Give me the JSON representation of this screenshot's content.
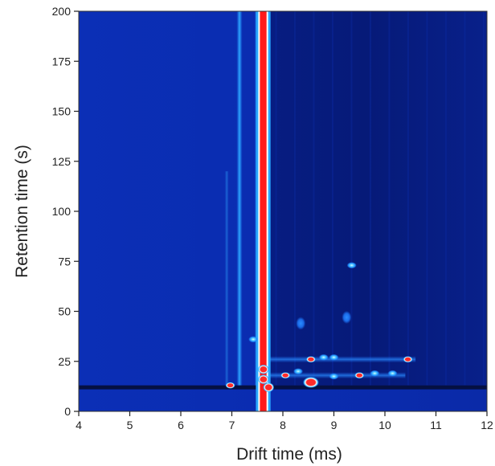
{
  "chart_data": {
    "type": "heatmap",
    "title": "",
    "xlabel": "Drift time (ms)",
    "ylabel": "Retention time (s)",
    "xlim": [
      4,
      12
    ],
    "ylim": [
      0,
      200
    ],
    "xticks": [
      4,
      5,
      6,
      7,
      8,
      9,
      10,
      11,
      12
    ],
    "yticks": [
      0,
      25,
      50,
      75,
      100,
      125,
      150,
      175,
      200
    ],
    "grid": false,
    "legend": "none",
    "colors": {
      "background": "#0a2db4",
      "low": "#061a78",
      "medium": "#1e90ff",
      "high": "#ff1a1a",
      "contour": "#ffffff"
    },
    "features": {
      "reactant_ion_peak": {
        "drift_ms": [
          7.55,
          7.68
        ],
        "retention_s": [
          0,
          200
        ],
        "intensity": "high"
      },
      "vertical_streaks": [
        {
          "drift_ms": 7.15,
          "retention_s": [
            13,
            200
          ],
          "intensity": "medium"
        },
        {
          "drift_ms": 7.5,
          "retention_s": [
            13,
            200
          ],
          "intensity": "medium"
        },
        {
          "drift_ms": 6.9,
          "retention_s": [
            13,
            120
          ],
          "intensity": "low-medium"
        }
      ],
      "dark_band": {
        "retention_s": [
          11,
          13
        ],
        "drift_ms": [
          4,
          12
        ]
      },
      "dark_region": {
        "drift_ms": [
          7.7,
          12
        ],
        "retention_s": [
          13,
          200
        ]
      },
      "horizontal_streaks": [
        {
          "retention_s": 26,
          "drift_ms": [
            7.7,
            10.6
          ]
        },
        {
          "retention_s": 18,
          "drift_ms": [
            7.7,
            10.4
          ]
        }
      ]
    },
    "peaks": [
      {
        "drift_ms": 6.97,
        "retention_s": 13,
        "intensity": "high",
        "size": 1
      },
      {
        "drift_ms": 7.42,
        "retention_s": 36,
        "intensity": "medium",
        "size": 1
      },
      {
        "drift_ms": 7.62,
        "retention_s": 16,
        "intensity": "high",
        "size": 2
      },
      {
        "drift_ms": 7.62,
        "retention_s": 21,
        "intensity": "high",
        "size": 2
      },
      {
        "drift_ms": 7.72,
        "retention_s": 12,
        "intensity": "high",
        "size": 2
      },
      {
        "drift_ms": 8.05,
        "retention_s": 18,
        "intensity": "high",
        "size": 1
      },
      {
        "drift_ms": 8.3,
        "retention_s": 20,
        "intensity": "medium",
        "size": 1
      },
      {
        "drift_ms": 8.55,
        "retention_s": 14.5,
        "intensity": "high",
        "size": 3
      },
      {
        "drift_ms": 8.55,
        "retention_s": 26,
        "intensity": "high",
        "size": 1
      },
      {
        "drift_ms": 8.8,
        "retention_s": 27,
        "intensity": "medium",
        "size": 1
      },
      {
        "drift_ms": 9.0,
        "retention_s": 17.5,
        "intensity": "medium",
        "size": 1
      },
      {
        "drift_ms": 9.0,
        "retention_s": 27,
        "intensity": "medium",
        "size": 1
      },
      {
        "drift_ms": 9.5,
        "retention_s": 18,
        "intensity": "high",
        "size": 1
      },
      {
        "drift_ms": 9.8,
        "retention_s": 19,
        "intensity": "medium",
        "size": 1
      },
      {
        "drift_ms": 10.15,
        "retention_s": 19,
        "intensity": "medium",
        "size": 1
      },
      {
        "drift_ms": 10.45,
        "retention_s": 26,
        "intensity": "high",
        "size": 1
      },
      {
        "drift_ms": 8.35,
        "retention_s": 44,
        "intensity": "low",
        "size": 1
      },
      {
        "drift_ms": 9.25,
        "retention_s": 47,
        "intensity": "low",
        "size": 1
      },
      {
        "drift_ms": 9.35,
        "retention_s": 73,
        "intensity": "medium",
        "size": 1
      }
    ]
  }
}
